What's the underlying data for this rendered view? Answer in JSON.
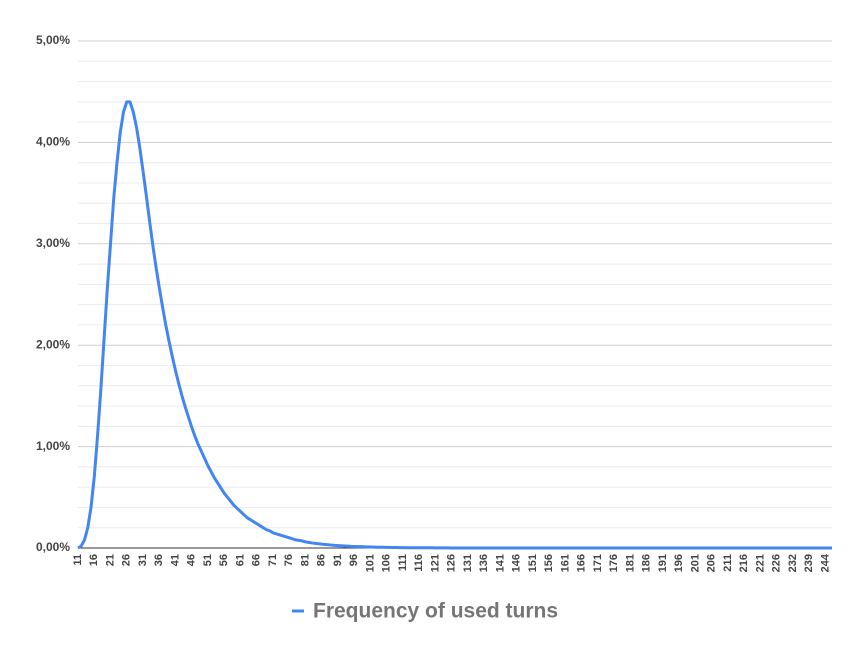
{
  "chart_data": {
    "type": "line",
    "categories": [
      "11",
      null,
      null,
      null,
      null,
      "16",
      null,
      null,
      null,
      null,
      "21",
      null,
      null,
      null,
      null,
      "26",
      null,
      null,
      null,
      null,
      "31",
      null,
      null,
      null,
      null,
      "36",
      null,
      null,
      null,
      null,
      "41",
      null,
      null,
      null,
      null,
      "46",
      null,
      null,
      null,
      null,
      "51",
      null,
      null,
      null,
      null,
      "56",
      null,
      null,
      null,
      null,
      "61",
      null,
      null,
      null,
      null,
      "66",
      null,
      null,
      null,
      null,
      "71",
      null,
      null,
      null,
      null,
      "76",
      null,
      null,
      null,
      null,
      "81",
      null,
      null,
      null,
      null,
      "86",
      null,
      null,
      null,
      null,
      "91",
      null,
      null,
      null,
      null,
      "96",
      null,
      null,
      null,
      null,
      "101",
      null,
      null,
      null,
      null,
      "106",
      null,
      null,
      null,
      null,
      "111",
      null,
      null,
      null,
      null,
      "116",
      null,
      null,
      null,
      null,
      "121",
      null,
      null,
      null,
      null,
      "126",
      null,
      null,
      null,
      null,
      "131",
      null,
      null,
      null,
      null,
      "136",
      null,
      null,
      null,
      null,
      "141",
      null,
      null,
      null,
      null,
      "146",
      null,
      null,
      null,
      null,
      "151",
      null,
      null,
      null,
      null,
      "156",
      null,
      null,
      null,
      null,
      "161",
      null,
      null,
      null,
      null,
      "166",
      null,
      null,
      null,
      null,
      "171",
      null,
      null,
      null,
      null,
      "176",
      null,
      null,
      null,
      null,
      "181",
      null,
      null,
      null,
      null,
      "186",
      null,
      null,
      null,
      null,
      "191",
      null,
      null,
      null,
      null,
      "196",
      null,
      null,
      null,
      null,
      "201",
      null,
      null,
      null,
      null,
      "206",
      null,
      null,
      null,
      null,
      "211",
      null,
      null,
      null,
      null,
      "216",
      null,
      null,
      null,
      null,
      "221",
      null,
      null,
      null,
      null,
      "226",
      null,
      null,
      null,
      null,
      "232",
      null,
      null,
      null,
      null,
      "239",
      null,
      null,
      null,
      null,
      "244",
      null,
      null
    ],
    "series": [
      {
        "name": "Frequency of used turns",
        "color": "#4285f4",
        "values": [
          0,
          0.02,
          0.08,
          0.2,
          0.4,
          0.7,
          1.1,
          1.55,
          2.05,
          2.55,
          3.0,
          3.45,
          3.8,
          4.1,
          4.3,
          4.4,
          4.4,
          4.3,
          4.15,
          3.95,
          3.72,
          3.48,
          3.23,
          2.99,
          2.77,
          2.57,
          2.38,
          2.2,
          2.04,
          1.89,
          1.75,
          1.62,
          1.5,
          1.39,
          1.29,
          1.19,
          1.1,
          1.02,
          0.95,
          0.88,
          0.81,
          0.75,
          0.69,
          0.64,
          0.59,
          0.54,
          0.5,
          0.46,
          0.42,
          0.39,
          0.36,
          0.33,
          0.3,
          0.28,
          0.26,
          0.24,
          0.22,
          0.2,
          0.18,
          0.17,
          0.15,
          0.14,
          0.13,
          0.12,
          0.11,
          0.1,
          0.09,
          0.08,
          0.075,
          0.07,
          0.06,
          0.055,
          0.05,
          0.046,
          0.042,
          0.038,
          0.035,
          0.032,
          0.029,
          0.026,
          0.024,
          0.022,
          0.02,
          0.018,
          0.016,
          0.015,
          0.014,
          0.013,
          0.012,
          0.011,
          0.01,
          0.009,
          0.008,
          0.007,
          0.007,
          0.006,
          0.006,
          0.005,
          0.005,
          0.004,
          0.004,
          0.003,
          0.003,
          0.003,
          0.002,
          0.002,
          0.002,
          0.002,
          0.002,
          0.002,
          0.001,
          0.001,
          0.001,
          0.001,
          0.001,
          0,
          0,
          0,
          0,
          0,
          0,
          0,
          0,
          0,
          0,
          0,
          0,
          0,
          0,
          0,
          0,
          0,
          0,
          0,
          0,
          0,
          0,
          0,
          0,
          0,
          0,
          0,
          0,
          0,
          0,
          0,
          0,
          0,
          0,
          0,
          0,
          0,
          0,
          0,
          0,
          0,
          0,
          0,
          0,
          0,
          0,
          0,
          0,
          0,
          0,
          0,
          0,
          0,
          0,
          0,
          0,
          0,
          0,
          0,
          0,
          0,
          0,
          0,
          0,
          0,
          0,
          0,
          0,
          0,
          0,
          0,
          0,
          0,
          0,
          0,
          0,
          0,
          0,
          0,
          0,
          0,
          0,
          0,
          0,
          0,
          0,
          0,
          0,
          0,
          0,
          0,
          0,
          0,
          0,
          0,
          0,
          0,
          0,
          0,
          0,
          0,
          0,
          0,
          0,
          0,
          0,
          0,
          0,
          0,
          0,
          0,
          0,
          0,
          0,
          0,
          0,
          0,
          0
        ]
      }
    ],
    "ylim": [
      0,
      5
    ],
    "yticks": [
      {
        "value": 0,
        "label": "0,00%"
      },
      {
        "value": 1,
        "label": "1,00%"
      },
      {
        "value": 2,
        "label": "2,00%"
      },
      {
        "value": 3,
        "label": "3,00%"
      },
      {
        "value": 4,
        "label": "4,00%"
      },
      {
        "value": 5,
        "label": "5,00%"
      }
    ],
    "yminorticks": [
      0.2,
      0.4,
      0.6,
      0.8,
      1.2,
      1.4,
      1.6,
      1.8,
      2.2,
      2.4,
      2.6,
      2.8,
      3.2,
      3.4,
      3.6,
      3.8,
      4.2,
      4.4,
      4.6,
      4.8
    ],
    "grid": true,
    "legend": "bottom"
  }
}
